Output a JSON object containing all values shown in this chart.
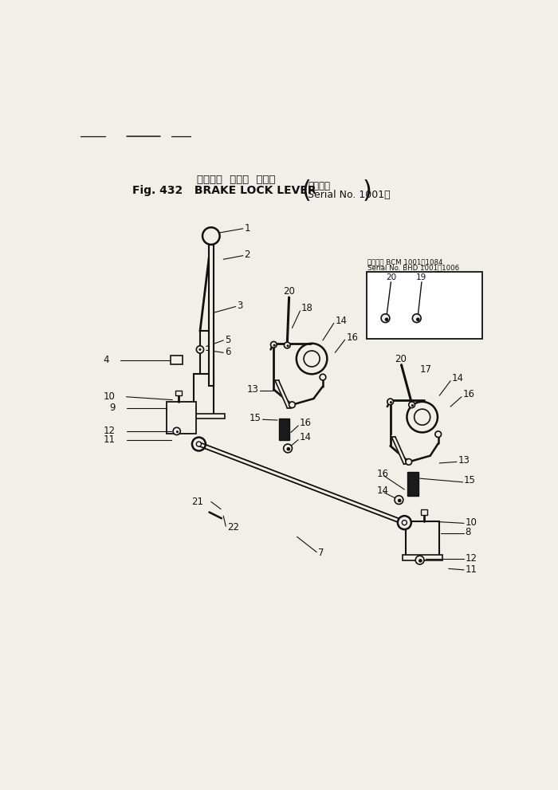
{
  "bg_color": "#f0efe8",
  "lc": "#111111",
  "tc": "#111111",
  "title_jp": "ブレーキ  ロック  レバー",
  "title_en": "Fig. 432   BRAKE LOCK LEVER",
  "serial_jp": "適用号機",
  "serial_en": "Serial No. 1001～",
  "inset_title1": "適用号機 BCM 1001～1084",
  "inset_title2": "Serial No. BHD 1001～1006",
  "fig_w": 700,
  "fig_h": 991
}
